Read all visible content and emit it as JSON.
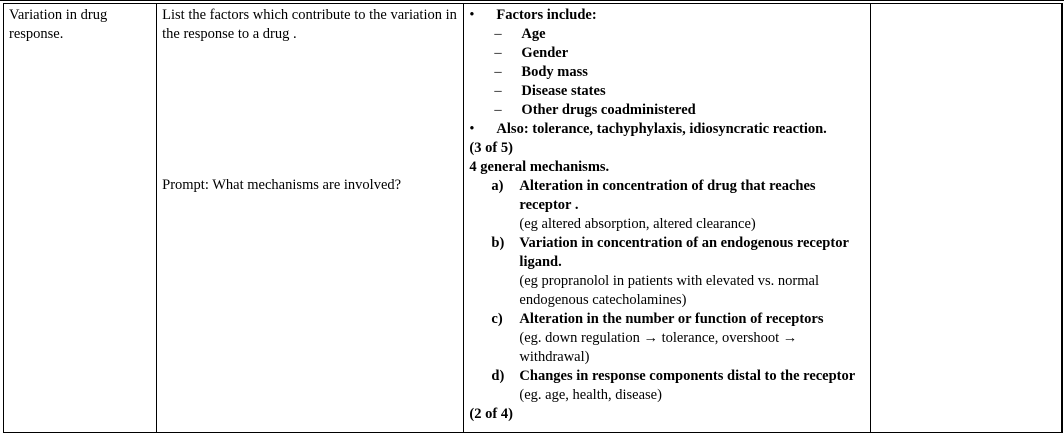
{
  "topic": "Variation in drug response.",
  "question": "List the factors which contribute to the variation in the response to a drug .",
  "prompt": "Prompt: What mechanisms are involved?",
  "answer": {
    "factors_heading": "Factors include:",
    "factors": [
      "Age",
      "Gender",
      "Body mass",
      "Disease states",
      "Other drugs coadministered"
    ],
    "also": "Also: tolerance, tachyphylaxis, idiosyncratic reaction.",
    "score1": "(3 of 5)",
    "mechanisms_heading": "4 general mechanisms.",
    "mechanisms": [
      {
        "letter": "a)",
        "head": "Alteration in concentration of drug that reaches receptor .",
        "example": "(eg altered absorption, altered clearance)"
      },
      {
        "letter": "b)",
        "head": "Variation in concentration of an endogenous receptor ligand.",
        "example": "(eg propranolol in patients with elevated vs. normal endogenous catecholamines)"
      },
      {
        "letter": "c)",
        "head": "Alteration in the number or function of receptors",
        "example": "(eg. down regulation → tolerance, overshoot → withdrawal)"
      },
      {
        "letter": "d)",
        "head": "Changes in response components distal to the receptor",
        "example": "(eg. age, health, disease)"
      }
    ],
    "score2": "(2 of 4)"
  },
  "bullet_glyph": "•",
  "dash_glyph": "–"
}
